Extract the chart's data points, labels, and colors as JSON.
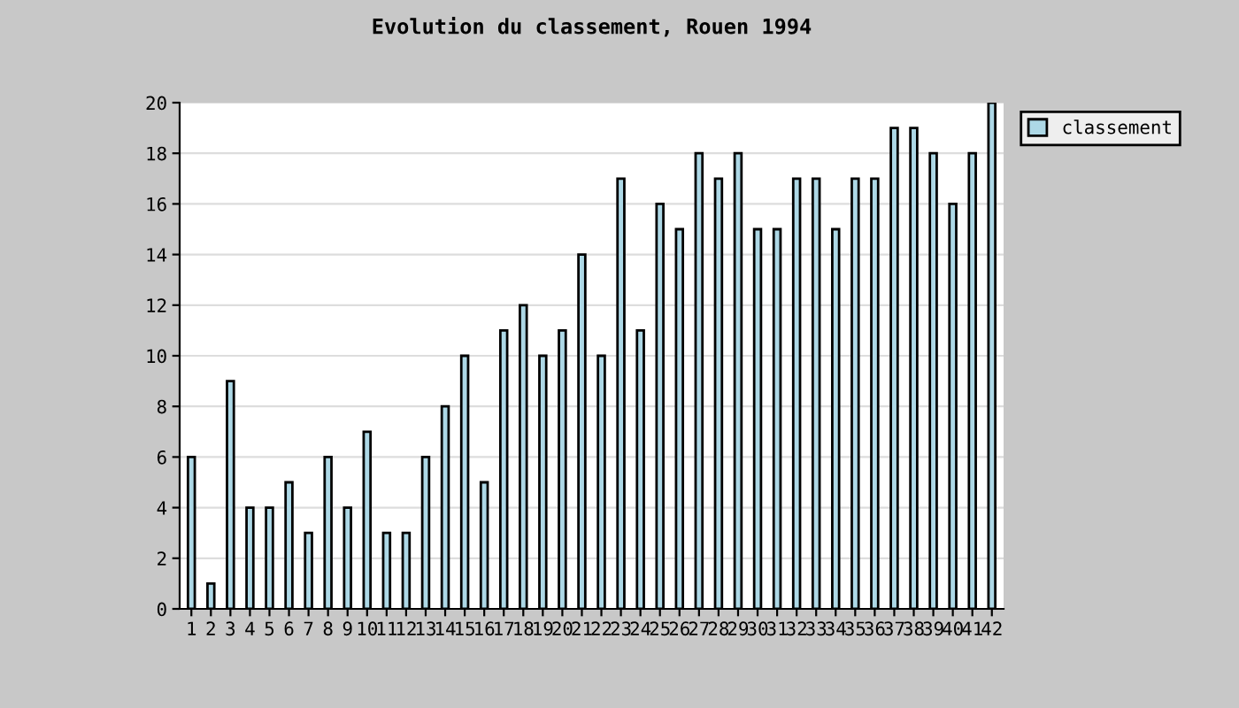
{
  "chart_data": {
    "type": "bar",
    "title": "Evolution du classement, Rouen 1994",
    "categories": [
      "1",
      "2",
      "3",
      "4",
      "5",
      "6",
      "7",
      "8",
      "9",
      "10",
      "11",
      "12",
      "13",
      "14",
      "15",
      "16",
      "17",
      "18",
      "19",
      "20",
      "21",
      "22",
      "23",
      "24",
      "25",
      "26",
      "27",
      "28",
      "29",
      "30",
      "31",
      "32",
      "33",
      "34",
      "35",
      "36",
      "37",
      "38",
      "39",
      "40",
      "41",
      "42"
    ],
    "series": [
      {
        "name": "classement",
        "color": "#add8e6",
        "values": [
          6,
          1,
          9,
          4,
          4,
          5,
          3,
          6,
          4,
          7,
          3,
          3,
          6,
          8,
          10,
          5,
          11,
          12,
          10,
          11,
          14,
          10,
          17,
          11,
          16,
          15,
          18,
          17,
          18,
          15,
          15,
          17,
          17,
          15,
          17,
          17,
          19,
          19,
          18,
          16,
          18,
          20
        ]
      }
    ],
    "ylim": [
      0,
      20
    ],
    "yticks": [
      0,
      2,
      4,
      6,
      8,
      10,
      12,
      14,
      16,
      18,
      20
    ],
    "grid": "y",
    "legend": "top right"
  }
}
